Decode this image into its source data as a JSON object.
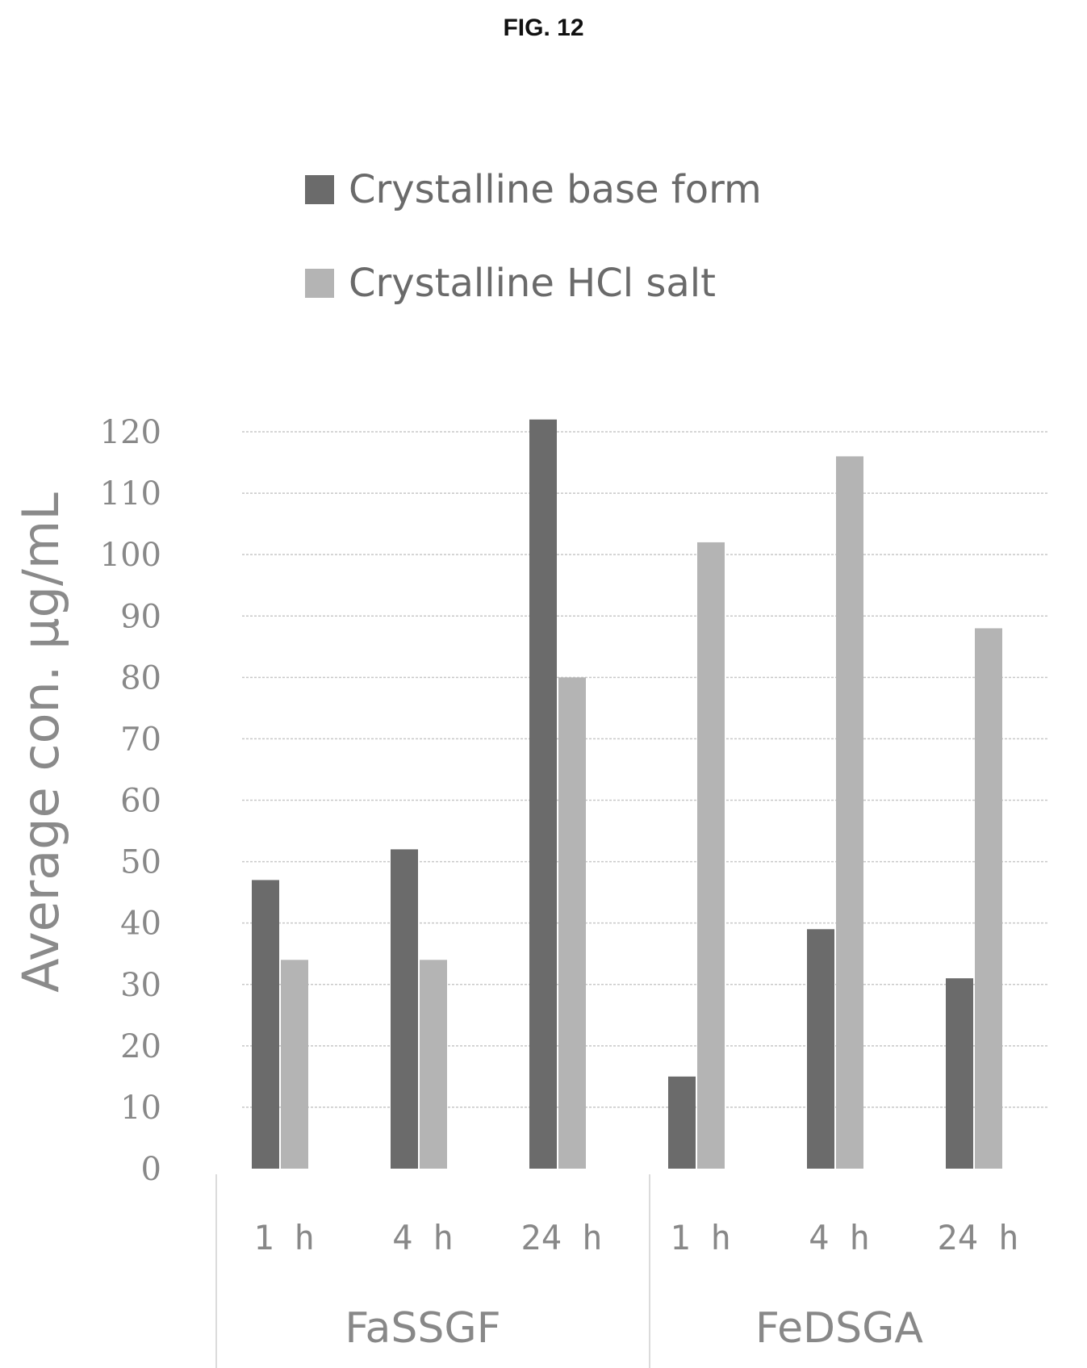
{
  "figure_label": "FIG. 12",
  "colors": {
    "series_dark": "#6b6b6b",
    "series_light": "#b4b4b4",
    "text": "#888888",
    "grid": "#c8c8c8"
  },
  "chart_data": {
    "type": "bar",
    "title": "",
    "ylabel": "Average con. µg/mL",
    "xlabel": "",
    "ylim": [
      0,
      120
    ],
    "yticks": [
      0,
      10,
      20,
      30,
      40,
      50,
      60,
      70,
      80,
      90,
      100,
      110,
      120
    ],
    "grid": true,
    "legend_position": "top",
    "groups": [
      {
        "name": "FaSSGF",
        "categories": [
          "1 h",
          "4 h",
          "24 h"
        ]
      },
      {
        "name": "FeDSGA",
        "categories": [
          "1 h",
          "4 h",
          "24 h"
        ]
      }
    ],
    "categories": [
      "1 h",
      "4 h",
      "24 h",
      "1 h",
      "4 h",
      "24 h"
    ],
    "series": [
      {
        "name": "Crystalline base form",
        "values": [
          47,
          52,
          122,
          15,
          39,
          31
        ]
      },
      {
        "name": "Crystalline HCl salt",
        "values": [
          34,
          34,
          80,
          102,
          116,
          88
        ]
      }
    ]
  }
}
